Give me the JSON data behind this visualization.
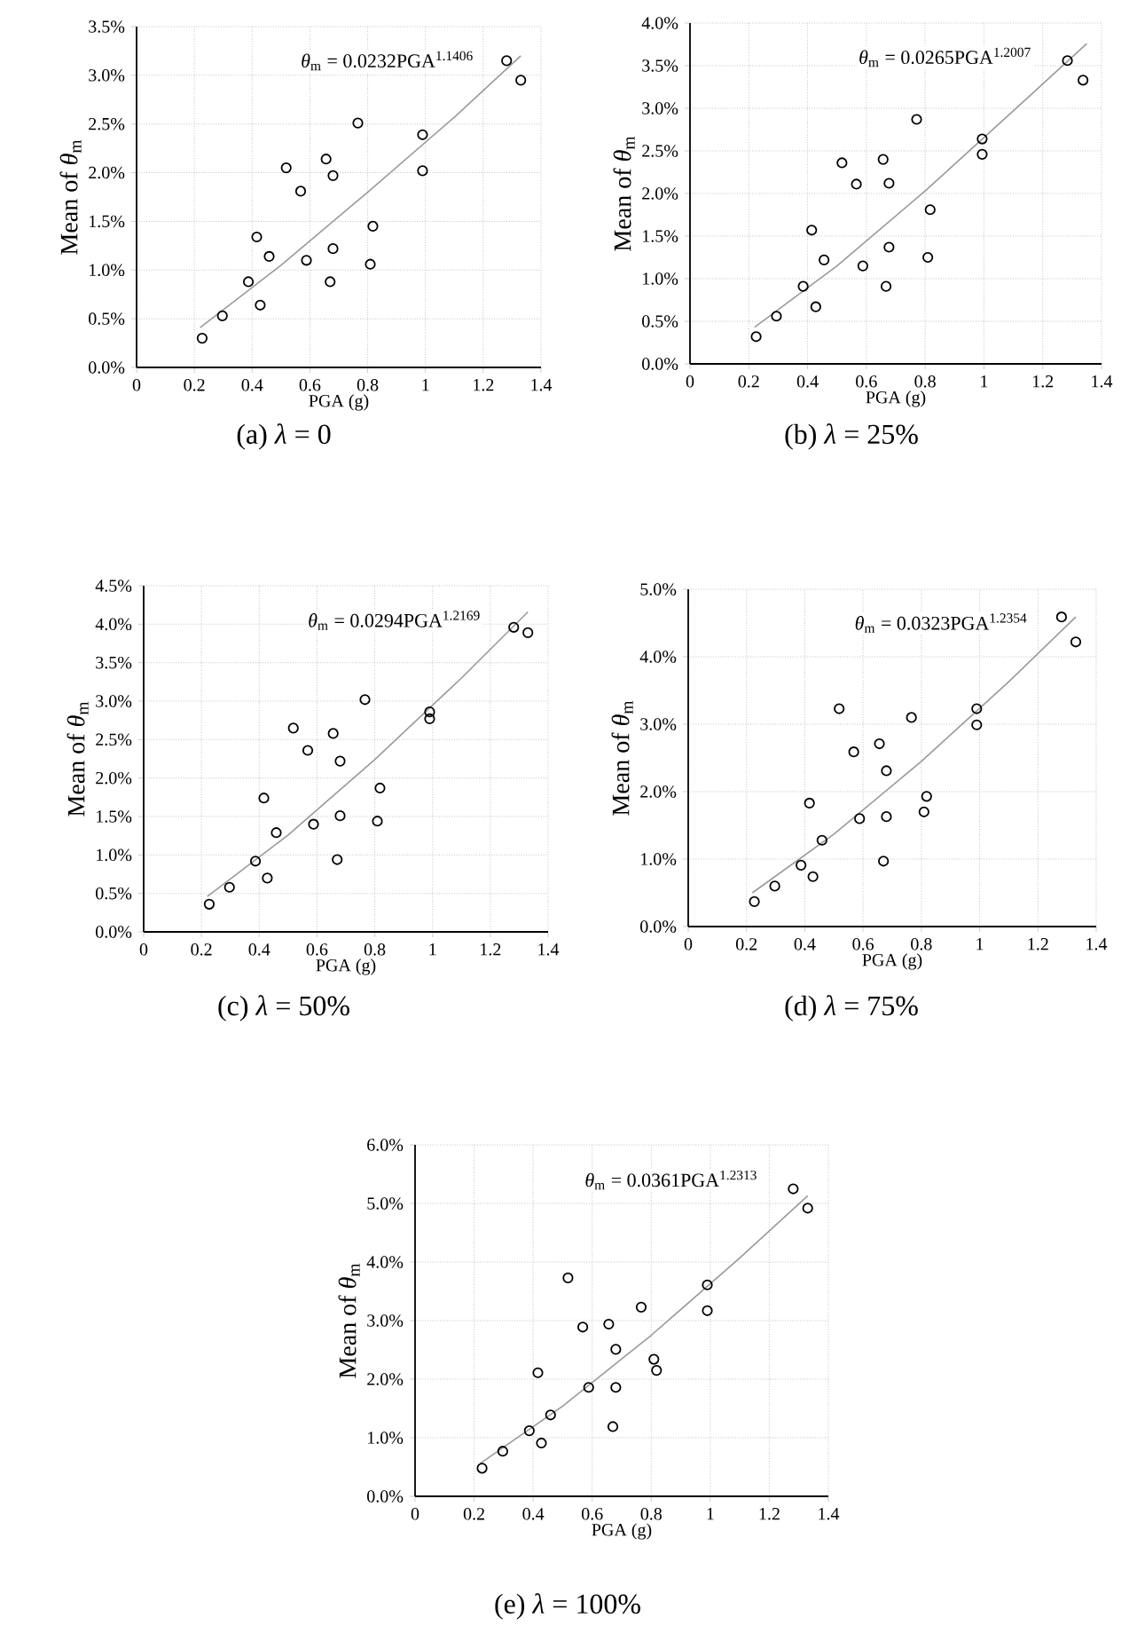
{
  "chart_data": [
    {
      "type": "scatter",
      "title": "(a) *λ* = 0",
      "xlabel": "PGA (g)",
      "ylabel": "Mean of *θ*$_{m}$",
      "annotations": [
        "*θ*$_{m}$ = 0.0232PGA$^{1.1406}$"
      ],
      "xlim": [
        0,
        1.4
      ],
      "xticks": [
        0,
        0.2,
        0.4,
        0.6,
        0.8,
        1,
        1.2,
        1.4
      ],
      "ylim": [
        0,
        3.5
      ],
      "yticks": [
        {
          "value": 0,
          "label": "0.0%"
        },
        {
          "value": 0.5,
          "label": "0.5%"
        },
        {
          "value": 1,
          "label": "1.0%"
        },
        {
          "value": 1.5,
          "label": "1.5%"
        },
        {
          "value": 2,
          "label": "2.0%"
        },
        {
          "value": 2.5,
          "label": "2.5%"
        },
        {
          "value": 3,
          "label": "3.0%"
        },
        {
          "value": 3.5,
          "label": "3.5%"
        }
      ],
      "grid": true,
      "marker": "circle",
      "series": [
        {
          "type": "scatter",
          "color": "#000000",
          "x": [
            0.227,
            0.297,
            0.387,
            0.416,
            0.428,
            0.459,
            0.518,
            0.568,
            0.588,
            0.656,
            0.67,
            0.68,
            0.68,
            0.766,
            0.809,
            0.818,
            0.99,
            0.99,
            1.281,
            1.33
          ],
          "values": [
            0.3,
            0.53,
            0.88,
            1.34,
            0.64,
            1.14,
            2.05,
            1.81,
            1.1,
            2.14,
            0.88,
            1.97,
            1.22,
            2.51,
            1.06,
            1.45,
            2.39,
            2.02,
            3.15,
            2.95
          ]
        },
        {
          "type": "line",
          "marker": "none",
          "color": "#9a9a9a",
          "x": [
            0.22,
            0.5,
            0.8,
            1.1,
            1.33
          ],
          "values": [
            0.41,
            1.05,
            1.8,
            2.57,
            3.2
          ]
        }
      ]
    },
    {
      "type": "scatter",
      "title": "(b) *λ* = 25%",
      "xlabel": "PGA (g)",
      "ylabel": "Mean of *θ*$_{m}$",
      "annotations": [
        "*θ*$_{m}$ = 0.0265PGA$^{1.2007}$"
      ],
      "xlim": [
        0,
        1.4
      ],
      "xticks": [
        0,
        0.2,
        0.4,
        0.6,
        0.8,
        1,
        1.2,
        1.4
      ],
      "ylim": [
        0,
        4
      ],
      "yticks": [
        {
          "value": 0,
          "label": "0.0%"
        },
        {
          "value": 0.5,
          "label": "0.5%"
        },
        {
          "value": 1,
          "label": "1.0%"
        },
        {
          "value": 1.5,
          "label": "1.5%"
        },
        {
          "value": 2,
          "label": "2.0%"
        },
        {
          "value": 2.5,
          "label": "2.5%"
        },
        {
          "value": 3,
          "label": "3.0%"
        },
        {
          "value": 3.5,
          "label": "3.5%"
        },
        {
          "value": 4,
          "label": "4.0%"
        }
      ],
      "grid": true,
      "marker": "circle",
      "series": [
        {
          "type": "scatter",
          "color": "#000000",
          "x": [
            0.225,
            0.294,
            0.385,
            0.414,
            0.428,
            0.456,
            0.517,
            0.566,
            0.588,
            0.657,
            0.667,
            0.677,
            0.677,
            0.771,
            0.809,
            0.817,
            0.994,
            0.994,
            1.284,
            1.337
          ],
          "values": [
            0.32,
            0.56,
            0.91,
            1.57,
            0.67,
            1.22,
            2.36,
            2.11,
            1.15,
            2.4,
            0.91,
            2.12,
            1.37,
            2.87,
            1.25,
            1.81,
            2.64,
            2.46,
            3.56,
            3.33
          ]
        },
        {
          "type": "line",
          "marker": "none",
          "color": "#9a9a9a",
          "x": [
            0.22,
            0.5,
            0.8,
            1.1,
            1.35
          ],
          "values": [
            0.43,
            1.15,
            2.03,
            2.97,
            3.76
          ]
        }
      ]
    },
    {
      "type": "scatter",
      "title": "(c) *λ* = 50%",
      "xlabel": "PGA (g)",
      "ylabel": "Mean of *θ*$_{m}$",
      "annotations": [
        "*θ*$_{m}$ = 0.0294PGA$^{1.2169}$"
      ],
      "xlim": [
        0,
        1.4
      ],
      "xticks": [
        0,
        0.2,
        0.4,
        0.6,
        0.8,
        1,
        1.2,
        1.4
      ],
      "ylim": [
        0,
        4.5
      ],
      "yticks": [
        {
          "value": 0,
          "label": "0.0%"
        },
        {
          "value": 0.5,
          "label": "0.5%"
        },
        {
          "value": 1,
          "label": "1.0%"
        },
        {
          "value": 1.5,
          "label": "1.5%"
        },
        {
          "value": 2,
          "label": "2.0%"
        },
        {
          "value": 2.5,
          "label": "2.5%"
        },
        {
          "value": 3,
          "label": "3.0%"
        },
        {
          "value": 3.5,
          "label": "3.5%"
        },
        {
          "value": 4,
          "label": "4.0%"
        },
        {
          "value": 4.5,
          "label": "4.5%"
        }
      ],
      "grid": true,
      "marker": "circle",
      "series": [
        {
          "type": "scatter",
          "color": "#000000",
          "x": [
            0.227,
            0.297,
            0.387,
            0.416,
            0.428,
            0.459,
            0.518,
            0.568,
            0.588,
            0.656,
            0.67,
            0.68,
            0.68,
            0.766,
            0.809,
            0.818,
            0.99,
            0.99,
            1.281,
            1.33
          ],
          "values": [
            0.36,
            0.58,
            0.92,
            1.74,
            0.7,
            1.29,
            2.65,
            2.36,
            1.4,
            2.58,
            0.94,
            2.22,
            1.51,
            3.02,
            1.44,
            1.87,
            2.86,
            2.77,
            3.96,
            3.89
          ]
        },
        {
          "type": "line",
          "marker": "none",
          "color": "#9a9a9a",
          "x": [
            0.22,
            0.5,
            0.8,
            1.1,
            1.33
          ],
          "values": [
            0.46,
            1.26,
            2.24,
            3.3,
            4.16
          ]
        }
      ]
    },
    {
      "type": "scatter",
      "title": "(d) *λ* = 75%",
      "xlabel": "PGA (g)",
      "ylabel": "Mean of *θ*$_{m}$",
      "annotations": [
        "*θ*$_{m}$ = 0.0323PGA$^{1.2354}$"
      ],
      "xlim": [
        0,
        1.4
      ],
      "xticks": [
        0,
        0.2,
        0.4,
        0.6,
        0.8,
        1,
        1.2,
        1.4
      ],
      "ylim": [
        0,
        5
      ],
      "yticks": [
        {
          "value": 0,
          "label": "0.0%"
        },
        {
          "value": 1,
          "label": "1.0%"
        },
        {
          "value": 2,
          "label": "2.0%"
        },
        {
          "value": 3,
          "label": "3.0%"
        },
        {
          "value": 4,
          "label": "4.0%"
        },
        {
          "value": 5,
          "label": "5.0%"
        }
      ],
      "grid": true,
      "marker": "circle",
      "series": [
        {
          "type": "scatter",
          "color": "#000000",
          "x": [
            0.227,
            0.297,
            0.387,
            0.416,
            0.428,
            0.459,
            0.518,
            0.568,
            0.588,
            0.656,
            0.67,
            0.68,
            0.68,
            0.766,
            0.809,
            0.818,
            0.99,
            0.99,
            1.281,
            1.33
          ],
          "values": [
            0.37,
            0.6,
            0.91,
            1.83,
            0.74,
            1.28,
            3.23,
            2.59,
            1.6,
            2.71,
            0.97,
            2.31,
            1.63,
            3.1,
            1.7,
            1.93,
            3.23,
            2.99,
            4.59,
            4.22
          ]
        },
        {
          "type": "line",
          "marker": "none",
          "color": "#9a9a9a",
          "x": [
            0.22,
            0.5,
            0.8,
            1.1,
            1.33
          ],
          "values": [
            0.5,
            1.37,
            2.45,
            3.63,
            4.59
          ]
        }
      ]
    },
    {
      "type": "scatter",
      "title": "(e) *λ* = 100%",
      "xlabel": "PGA (g)",
      "ylabel": "Mean of *θ*$_{m}$",
      "annotations": [
        "*θ*$_{m}$ = 0.0361PGA$^{1.2313}$"
      ],
      "xlim": [
        0,
        1.4
      ],
      "xticks": [
        0,
        0.2,
        0.4,
        0.6,
        0.8,
        1,
        1.2,
        1.4
      ],
      "ylim": [
        0,
        6
      ],
      "yticks": [
        {
          "value": 0,
          "label": "0.0%"
        },
        {
          "value": 1,
          "label": "1.0%"
        },
        {
          "value": 2,
          "label": "2.0%"
        },
        {
          "value": 3,
          "label": "3.0%"
        },
        {
          "value": 4,
          "label": "4.0%"
        },
        {
          "value": 5,
          "label": "5.0%"
        },
        {
          "value": 6,
          "label": "6.0%"
        }
      ],
      "grid": true,
      "marker": "circle",
      "series": [
        {
          "type": "scatter",
          "color": "#000000",
          "x": [
            0.227,
            0.297,
            0.387,
            0.416,
            0.428,
            0.459,
            0.518,
            0.568,
            0.588,
            0.656,
            0.67,
            0.68,
            0.68,
            0.766,
            0.809,
            0.818,
            0.99,
            0.99,
            1.281,
            1.33
          ],
          "values": [
            0.48,
            0.77,
            1.12,
            2.11,
            0.91,
            1.39,
            3.73,
            2.89,
            1.86,
            2.94,
            1.19,
            2.51,
            1.86,
            3.23,
            2.34,
            2.15,
            3.61,
            3.17,
            5.25,
            4.92
          ]
        },
        {
          "type": "line",
          "marker": "none",
          "color": "#9a9a9a",
          "x": [
            0.22,
            0.5,
            0.8,
            1.1,
            1.33
          ],
          "values": [
            0.56,
            1.54,
            2.75,
            4.07,
            5.13
          ]
        }
      ]
    }
  ]
}
